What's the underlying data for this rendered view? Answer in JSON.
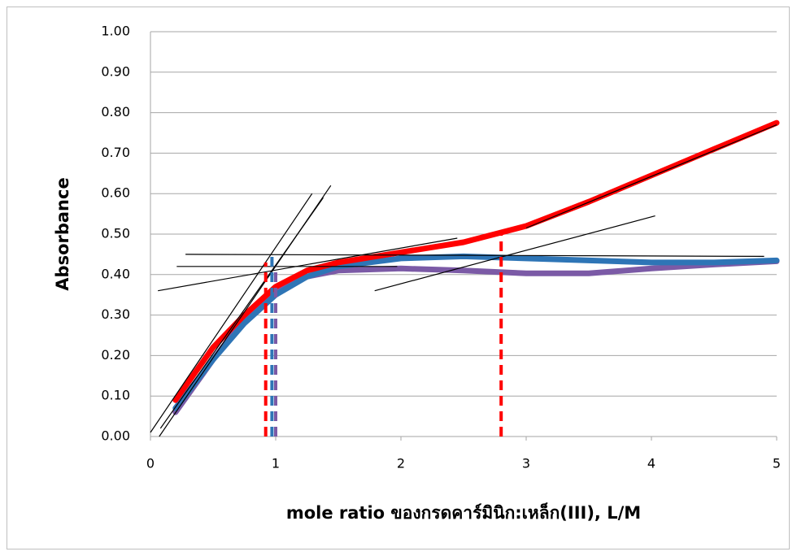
{
  "chart_data": {
    "type": "line",
    "x_label": "mole ratio ของกรดคาร์มินิก:เหล็ก(III), L/M",
    "y_label": "Absorbance",
    "xlim": [
      0,
      5
    ],
    "xticks": [
      0,
      1,
      2,
      3,
      4,
      5
    ],
    "ylim": [
      0,
      1
    ],
    "yticks": [
      {
        "value": 0,
        "label": "0.00"
      },
      {
        "value": 0.1,
        "label": "0.10"
      },
      {
        "value": 0.2,
        "label": "0.20"
      },
      {
        "value": 0.3,
        "label": "0.30"
      },
      {
        "value": 0.4,
        "label": "0.40"
      },
      {
        "value": 0.5,
        "label": "0.50"
      },
      {
        "value": 0.6,
        "label": "0.60"
      },
      {
        "value": 0.7,
        "label": "0.70"
      },
      {
        "value": 0.8,
        "label": "0.80"
      },
      {
        "value": 0.9,
        "label": "0.90"
      },
      {
        "value": 1,
        "label": "1.00"
      }
    ],
    "grid": true,
    "series": [
      {
        "color": "#7b5aa6",
        "style": "thick",
        "x": [
          0.2,
          0.5,
          0.75,
          1.0,
          1.25,
          1.5,
          2.0,
          2.5,
          3.0,
          3.5,
          4.0,
          4.5,
          5.0
        ],
        "values": [
          0.06,
          0.19,
          0.29,
          0.36,
          0.395,
          0.41,
          0.415,
          0.41,
          0.403,
          0.403,
          0.415,
          0.425,
          0.433
        ]
      },
      {
        "color": "#2e75b6",
        "style": "thick",
        "x": [
          0.2,
          0.5,
          0.75,
          1.0,
          1.25,
          1.5,
          2.0,
          2.5,
          3.0,
          3.5,
          4.0,
          4.5,
          5.0
        ],
        "values": [
          0.07,
          0.19,
          0.28,
          0.35,
          0.395,
          0.42,
          0.44,
          0.445,
          0.44,
          0.435,
          0.43,
          0.43,
          0.435
        ]
      },
      {
        "color": "#ff0000",
        "style": "thick",
        "x": [
          0.2,
          0.5,
          0.75,
          1.0,
          1.25,
          1.5,
          2.0,
          2.5,
          3.0,
          3.5,
          4.0,
          4.5,
          5.0
        ],
        "values": [
          0.09,
          0.22,
          0.3,
          0.37,
          0.41,
          0.43,
          0.455,
          0.48,
          0.52,
          0.58,
          0.645,
          0.71,
          0.775
        ]
      },
      {
        "color": "#000000",
        "style": "thin",
        "x": [
          0,
          1.29
        ],
        "values": [
          0.01,
          0.6
        ]
      },
      {
        "color": "#000000",
        "style": "thin",
        "x": [
          0.07,
          1.44
        ],
        "values": [
          0,
          0.62
        ]
      },
      {
        "color": "#000000",
        "style": "thin",
        "x": [
          0.08,
          1.38
        ],
        "values": [
          0.02,
          0.59
        ]
      },
      {
        "color": "#000000",
        "style": "thin",
        "x": [
          0.28,
          4.9
        ],
        "values": [
          0.45,
          0.445
        ]
      },
      {
        "color": "#000000",
        "style": "thin",
        "x": [
          0.21,
          1.97
        ],
        "values": [
          0.42,
          0.42
        ]
      },
      {
        "color": "#000000",
        "style": "thin",
        "x": [
          0.06,
          2.45
        ],
        "values": [
          0.36,
          0.49
        ]
      },
      {
        "color": "#000000",
        "style": "thin",
        "x": [
          1.79,
          4.03
        ],
        "values": [
          0.36,
          0.545
        ]
      },
      {
        "color": "#000000",
        "style": "thin",
        "x": [
          3.0,
          5.0
        ],
        "values": [
          0.515,
          0.77
        ]
      },
      {
        "color": "#ff0000",
        "style": "dashed",
        "x": [
          0.92,
          0.92
        ],
        "values": [
          0,
          0.43
        ]
      },
      {
        "color": "#2e75b6",
        "style": "dashed",
        "x": [
          0.97,
          0.97
        ],
        "values": [
          0,
          0.45
        ]
      },
      {
        "color": "#7b5aa6",
        "style": "dashed",
        "x": [
          1.0,
          1.0
        ],
        "values": [
          0,
          0.42
        ]
      },
      {
        "color": "#ff0000",
        "style": "dashed",
        "x": [
          2.8,
          2.8
        ],
        "values": [
          0,
          0.5
        ]
      }
    ]
  }
}
